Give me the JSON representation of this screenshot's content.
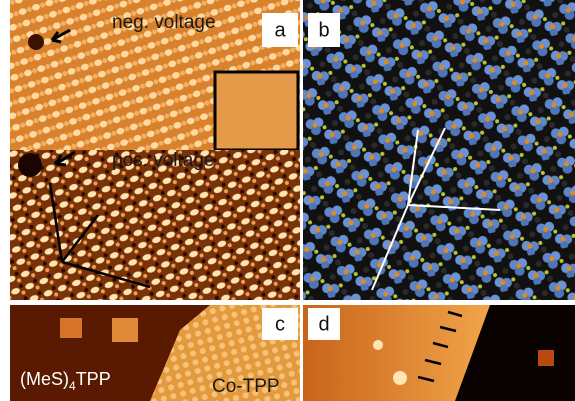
{
  "panels": [
    {
      "label": "a",
      "annotations": [
        "neg. voltage",
        "pos. voltage"
      ]
    },
    {
      "label": "b"
    },
    {
      "label": "c",
      "annotations": [
        {
          "prefix": "(MeS)",
          "subscript": "4",
          "suffix": "TPP"
        },
        "Co-TPP"
      ]
    },
    {
      "label": "d"
    }
  ]
}
